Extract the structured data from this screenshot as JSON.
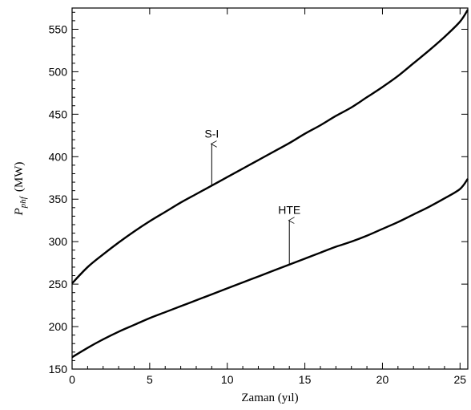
{
  "chart_data": {
    "type": "line",
    "xlabel": "Zaman (yıl)",
    "ylabel": {
      "symbol": "P",
      "subscript": "phf",
      "unit": "(MW)"
    },
    "xlim": [
      0,
      25.5
    ],
    "ylim": [
      150,
      575
    ],
    "xticks": [
      0,
      5,
      10,
      15,
      20,
      25
    ],
    "yticks": [
      150,
      200,
      250,
      300,
      350,
      400,
      450,
      500,
      550
    ],
    "grid": false,
    "series": [
      {
        "name": "S-I",
        "x": [
          0,
          1,
          2,
          3,
          4,
          5,
          6,
          7,
          8,
          9,
          10,
          11,
          12,
          13,
          14,
          15,
          16,
          17,
          18,
          19,
          20,
          21,
          22,
          23,
          24,
          25,
          25.5
        ],
        "y": [
          251,
          270,
          285,
          299,
          312,
          324,
          335,
          346,
          356,
          366,
          376,
          386,
          396,
          406,
          416,
          427,
          437,
          448,
          458,
          470,
          482,
          495,
          510,
          525,
          541,
          559,
          573
        ]
      },
      {
        "name": "HTE",
        "x": [
          0,
          1,
          2,
          3,
          4,
          5,
          6,
          7,
          8,
          9,
          10,
          11,
          12,
          13,
          14,
          15,
          16,
          17,
          18,
          19,
          20,
          21,
          22,
          23,
          24,
          25,
          25.5
        ],
        "y": [
          164,
          175,
          185,
          194,
          202,
          210,
          217,
          224,
          231,
          238,
          245,
          252,
          259,
          266,
          273,
          280,
          287,
          294,
          300,
          307,
          315,
          323,
          332,
          341,
          351,
          362,
          374
        ]
      }
    ],
    "annotations": [
      {
        "text": "S-I",
        "x": 9,
        "y_from": 366,
        "y_to": 415
      },
      {
        "text": "HTE",
        "x": 14,
        "y_from": 273,
        "y_to": 325
      }
    ]
  }
}
